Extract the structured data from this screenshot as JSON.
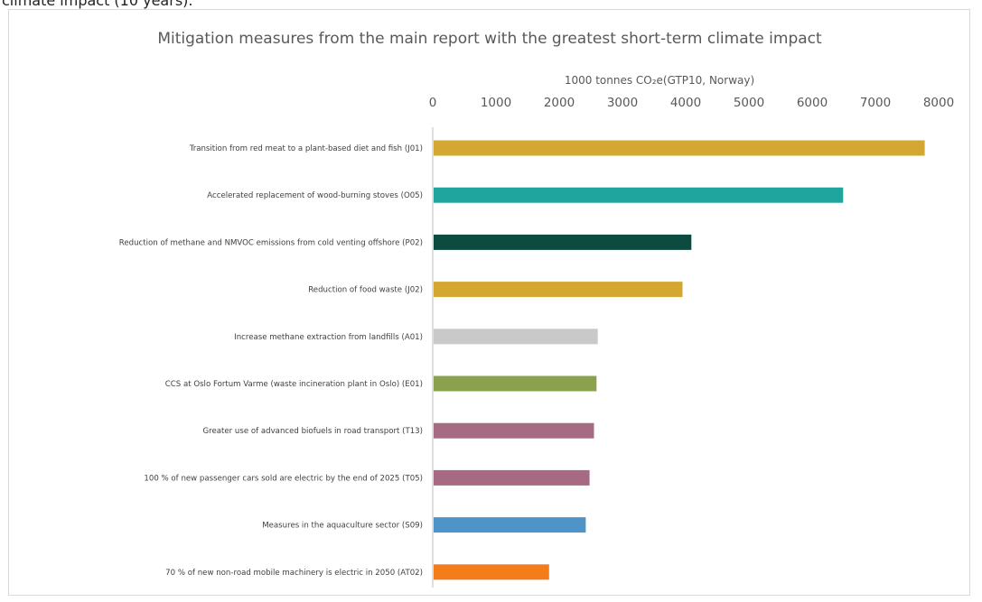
{
  "page_header_fragment": "climate impact (10 years).",
  "chart_data": {
    "type": "bar",
    "orientation": "horizontal",
    "title": "Mitigation measures from the main report with the greatest short-term climate impact",
    "xlabel": "1000 tonnes CO₂e(GTP10, Norway)",
    "ylabel": "",
    "xlim": [
      0,
      8000
    ],
    "xticks": [
      0,
      1000,
      2000,
      3000,
      4000,
      5000,
      6000,
      7000,
      8000
    ],
    "x_axis_position": "top",
    "grid": false,
    "categories": [
      "Transition from red meat to a plant-based diet and fish (J01)",
      "Accelerated replacement of wood-burning stoves (O05)",
      "Reduction of methane and NMVOC emissions from cold venting offshore (P02)",
      "Reduction of food waste  (J02)",
      "Increase methane extraction from landfills (A01)",
      "CCS at Oslo Fortum Varme (waste incineration plant in Oslo) (E01)",
      "Greater use of advanced biofuels in road transport (T13)",
      "100 % of new passenger cars sold are electric by the end of 2025  (T05)",
      "Measures in the aquaculture sector (S09)",
      "70 % of new non-road mobile machinery is electric in 2050 (AT02)"
    ],
    "values": [
      7780,
      6490,
      4090,
      3950,
      2610,
      2590,
      2550,
      2480,
      2420,
      1840
    ],
    "colors": [
      "#d4a732",
      "#1fa59d",
      "#0d4a40",
      "#d4a732",
      "#c9c9c9",
      "#8aa14e",
      "#a66b82",
      "#a66b82",
      "#4f94c8",
      "#f47c1a"
    ]
  }
}
